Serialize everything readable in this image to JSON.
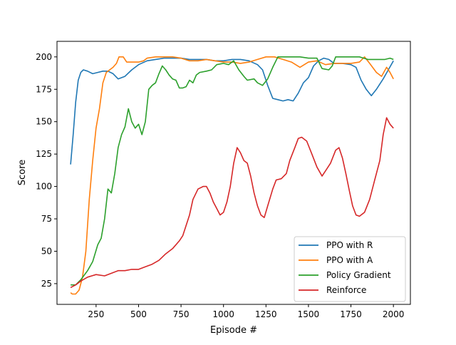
{
  "chart_data": {
    "type": "line",
    "title": "",
    "xlabel": "Episode #",
    "ylabel": "Score",
    "xlim": [
      20,
      2100
    ],
    "ylim": [
      9,
      212
    ],
    "xticks": [
      250,
      500,
      750,
      1000,
      1250,
      1500,
      1750,
      2000
    ],
    "yticks": [
      25,
      50,
      75,
      100,
      125,
      150,
      175,
      200
    ],
    "grid": false,
    "legend_position": "lower-right",
    "series": [
      {
        "name": "PPO with R",
        "color": "#1f77b4",
        "points": [
          [
            100,
            117
          ],
          [
            115,
            140
          ],
          [
            130,
            165
          ],
          [
            145,
            182
          ],
          [
            160,
            188
          ],
          [
            175,
            190
          ],
          [
            200,
            189
          ],
          [
            230,
            187
          ],
          [
            260,
            188
          ],
          [
            290,
            189
          ],
          [
            320,
            189
          ],
          [
            350,
            187
          ],
          [
            380,
            183
          ],
          [
            420,
            185
          ],
          [
            460,
            190
          ],
          [
            500,
            194
          ],
          [
            550,
            197
          ],
          [
            600,
            198
          ],
          [
            650,
            199
          ],
          [
            700,
            199
          ],
          [
            750,
            199
          ],
          [
            800,
            198
          ],
          [
            850,
            198
          ],
          [
            900,
            198
          ],
          [
            950,
            197
          ],
          [
            1000,
            197
          ],
          [
            1050,
            198
          ],
          [
            1100,
            198
          ],
          [
            1150,
            197
          ],
          [
            1200,
            194
          ],
          [
            1230,
            190
          ],
          [
            1260,
            178
          ],
          [
            1290,
            168
          ],
          [
            1320,
            167
          ],
          [
            1350,
            166
          ],
          [
            1380,
            167
          ],
          [
            1410,
            166
          ],
          [
            1440,
            172
          ],
          [
            1470,
            180
          ],
          [
            1500,
            184
          ],
          [
            1530,
            193
          ],
          [
            1560,
            197
          ],
          [
            1590,
            199
          ],
          [
            1620,
            198
          ],
          [
            1650,
            195
          ],
          [
            1700,
            195
          ],
          [
            1750,
            194
          ],
          [
            1780,
            192
          ],
          [
            1810,
            182
          ],
          [
            1840,
            175
          ],
          [
            1870,
            170
          ],
          [
            1900,
            175
          ],
          [
            1940,
            183
          ],
          [
            1970,
            190
          ],
          [
            2000,
            197
          ]
        ]
      },
      {
        "name": "PPO with A",
        "color": "#ff7f0e",
        "points": [
          [
            100,
            18
          ],
          [
            110,
            17
          ],
          [
            130,
            17
          ],
          [
            150,
            20
          ],
          [
            170,
            30
          ],
          [
            190,
            50
          ],
          [
            210,
            90
          ],
          [
            230,
            120
          ],
          [
            250,
            145
          ],
          [
            270,
            160
          ],
          [
            290,
            180
          ],
          [
            310,
            188
          ],
          [
            330,
            190
          ],
          [
            350,
            192
          ],
          [
            370,
            195
          ],
          [
            385,
            200
          ],
          [
            410,
            200
          ],
          [
            430,
            196
          ],
          [
            460,
            196
          ],
          [
            500,
            196
          ],
          [
            530,
            197
          ],
          [
            550,
            199
          ],
          [
            600,
            200
          ],
          [
            650,
            200
          ],
          [
            700,
            200
          ],
          [
            750,
            199
          ],
          [
            800,
            197
          ],
          [
            850,
            197
          ],
          [
            900,
            198
          ],
          [
            950,
            197
          ],
          [
            1000,
            196
          ],
          [
            1050,
            196
          ],
          [
            1100,
            195
          ],
          [
            1150,
            196
          ],
          [
            1200,
            198
          ],
          [
            1250,
            200
          ],
          [
            1300,
            200
          ],
          [
            1350,
            198
          ],
          [
            1400,
            196
          ],
          [
            1450,
            192
          ],
          [
            1500,
            196
          ],
          [
            1550,
            197
          ],
          [
            1600,
            194
          ],
          [
            1650,
            195
          ],
          [
            1700,
            195
          ],
          [
            1750,
            195
          ],
          [
            1800,
            196
          ],
          [
            1830,
            200
          ],
          [
            1860,
            195
          ],
          [
            1900,
            188
          ],
          [
            1930,
            185
          ],
          [
            1960,
            192
          ],
          [
            1980,
            188
          ],
          [
            2000,
            183
          ]
        ]
      },
      {
        "name": "Policy Gradient",
        "color": "#2ca02c",
        "points": [
          [
            100,
            24
          ],
          [
            130,
            24
          ],
          [
            160,
            28
          ],
          [
            200,
            35
          ],
          [
            230,
            42
          ],
          [
            260,
            55
          ],
          [
            280,
            60
          ],
          [
            300,
            75
          ],
          [
            320,
            98
          ],
          [
            340,
            95
          ],
          [
            360,
            110
          ],
          [
            380,
            130
          ],
          [
            400,
            140
          ],
          [
            420,
            146
          ],
          [
            440,
            160
          ],
          [
            460,
            150
          ],
          [
            480,
            145
          ],
          [
            500,
            148
          ],
          [
            520,
            140
          ],
          [
            540,
            150
          ],
          [
            560,
            175
          ],
          [
            580,
            178
          ],
          [
            600,
            180
          ],
          [
            620,
            187
          ],
          [
            640,
            193
          ],
          [
            660,
            190
          ],
          [
            680,
            186
          ],
          [
            700,
            183
          ],
          [
            720,
            182
          ],
          [
            740,
            176
          ],
          [
            760,
            176
          ],
          [
            780,
            177
          ],
          [
            800,
            182
          ],
          [
            820,
            180
          ],
          [
            840,
            186
          ],
          [
            860,
            188
          ],
          [
            900,
            189
          ],
          [
            930,
            190
          ],
          [
            960,
            194
          ],
          [
            1000,
            195
          ],
          [
            1030,
            194
          ],
          [
            1060,
            197
          ],
          [
            1090,
            190
          ],
          [
            1120,
            185
          ],
          [
            1140,
            182
          ],
          [
            1180,
            183
          ],
          [
            1200,
            180
          ],
          [
            1230,
            178
          ],
          [
            1260,
            183
          ],
          [
            1290,
            192
          ],
          [
            1320,
            200
          ],
          [
            1350,
            200
          ],
          [
            1400,
            200
          ],
          [
            1450,
            200
          ],
          [
            1500,
            199
          ],
          [
            1550,
            199
          ],
          [
            1580,
            191
          ],
          [
            1620,
            190
          ],
          [
            1640,
            193
          ],
          [
            1660,
            200
          ],
          [
            1700,
            200
          ],
          [
            1750,
            200
          ],
          [
            1800,
            200
          ],
          [
            1850,
            198
          ],
          [
            1900,
            198
          ],
          [
            1950,
            198
          ],
          [
            1980,
            199
          ],
          [
            2000,
            198
          ]
        ]
      },
      {
        "name": "Reinforce",
        "color": "#d62728",
        "points": [
          [
            100,
            22
          ],
          [
            130,
            24
          ],
          [
            160,
            27
          ],
          [
            200,
            30
          ],
          [
            250,
            32
          ],
          [
            300,
            31
          ],
          [
            340,
            33
          ],
          [
            380,
            35
          ],
          [
            420,
            35
          ],
          [
            460,
            36
          ],
          [
            500,
            36
          ],
          [
            540,
            38
          ],
          [
            580,
            40
          ],
          [
            620,
            43
          ],
          [
            660,
            48
          ],
          [
            700,
            52
          ],
          [
            740,
            58
          ],
          [
            760,
            62
          ],
          [
            800,
            78
          ],
          [
            820,
            90
          ],
          [
            850,
            98
          ],
          [
            880,
            100
          ],
          [
            900,
            100
          ],
          [
            920,
            95
          ],
          [
            940,
            88
          ],
          [
            960,
            83
          ],
          [
            980,
            78
          ],
          [
            1000,
            80
          ],
          [
            1020,
            88
          ],
          [
            1040,
            100
          ],
          [
            1060,
            118
          ],
          [
            1080,
            130
          ],
          [
            1100,
            126
          ],
          [
            1120,
            120
          ],
          [
            1140,
            118
          ],
          [
            1160,
            108
          ],
          [
            1180,
            95
          ],
          [
            1200,
            85
          ],
          [
            1220,
            78
          ],
          [
            1240,
            76
          ],
          [
            1260,
            85
          ],
          [
            1290,
            98
          ],
          [
            1310,
            105
          ],
          [
            1340,
            106
          ],
          [
            1370,
            110
          ],
          [
            1390,
            120
          ],
          [
            1420,
            130
          ],
          [
            1440,
            137
          ],
          [
            1460,
            138
          ],
          [
            1490,
            135
          ],
          [
            1520,
            125
          ],
          [
            1550,
            115
          ],
          [
            1580,
            108
          ],
          [
            1600,
            112
          ],
          [
            1630,
            118
          ],
          [
            1660,
            128
          ],
          [
            1680,
            130
          ],
          [
            1700,
            122
          ],
          [
            1720,
            110
          ],
          [
            1740,
            97
          ],
          [
            1760,
            85
          ],
          [
            1780,
            78
          ],
          [
            1800,
            77
          ],
          [
            1830,
            80
          ],
          [
            1860,
            90
          ],
          [
            1890,
            105
          ],
          [
            1920,
            120
          ],
          [
            1940,
            140
          ],
          [
            1960,
            153
          ],
          [
            1980,
            148
          ],
          [
            2000,
            145
          ]
        ]
      }
    ]
  }
}
